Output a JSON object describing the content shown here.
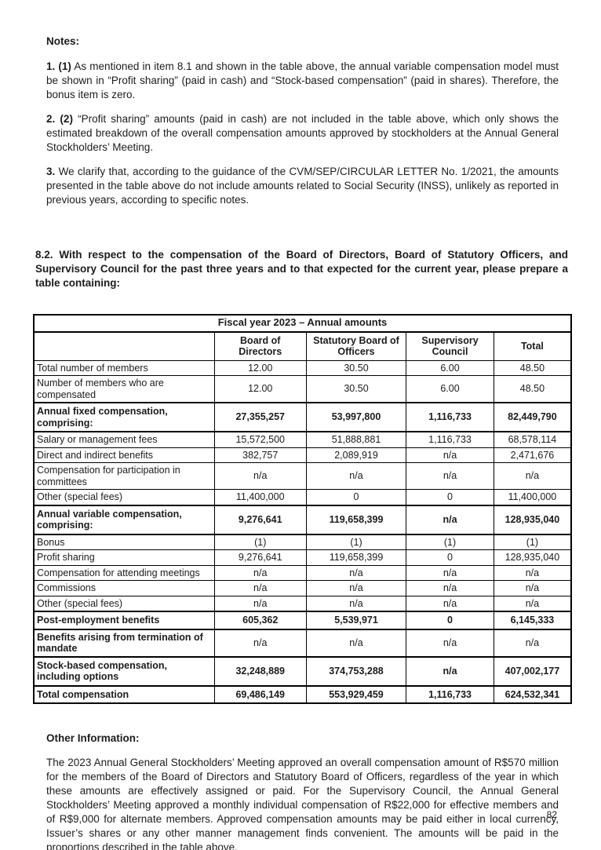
{
  "document": {
    "page_number": "82"
  },
  "notes": {
    "heading": "Notes:",
    "items": [
      {
        "prefix": "1. (1)",
        "text": "As mentioned in item 8.1 and shown in the table above, the annual variable compensation model must be shown in “Profit sharing” (paid in cash) and “Stock-based compensation” (paid in shares). Therefore, the bonus item is zero."
      },
      {
        "prefix": "2. (2)",
        "text": "“Profit sharing” amounts (paid in cash) are not included in the table above, which only shows the estimated breakdown of the overall compensation amounts approved by stockholders at the Annual General Stockholders’ Meeting."
      },
      {
        "prefix": "3.",
        "text": "We clarify that, according to the guidance of the CVM/SEP/CIRCULAR LETTER No. 1/2021, the amounts presented in the table above do not include amounts related to Social Security (INSS), unlikely as reported in previous years, according to specific notes."
      }
    ]
  },
  "section": {
    "heading": "8.2. With respect to the compensation of the Board of Directors, Board of Statutory Officers, and Supervisory Council for the past three years and to that expected for the current year, please prepare a table containing:"
  },
  "table": {
    "title": "Fiscal year 2023 – Annual amounts",
    "columns": [
      "Board of Directors",
      "Statutory Board of Officers",
      "Supervisory Council",
      "Total"
    ],
    "rows": [
      {
        "label": "Total number of members",
        "style": "normal",
        "values": [
          "12.00",
          "30.50",
          "6.00",
          "48.50"
        ]
      },
      {
        "label": "Number of members who are compensated",
        "style": "normal",
        "values": [
          "12.00",
          "30.50",
          "6.00",
          "48.50"
        ]
      },
      {
        "label": "Annual fixed compensation, comprising:",
        "style": "bold",
        "values": [
          "27,355,257",
          "53,997,800",
          "1,116,733",
          "82,449,790"
        ]
      },
      {
        "label": "Salary or management fees",
        "style": "normal",
        "values": [
          "15,572,500",
          "51,888,881",
          "1,116,733",
          "68,578,114"
        ]
      },
      {
        "label": "Direct and indirect benefits",
        "style": "normal",
        "values": [
          "382,757",
          "2,089,919",
          "n/a",
          "2,471,676"
        ]
      },
      {
        "label": "Compensation for participation in committees",
        "style": "normal",
        "values": [
          "n/a",
          "n/a",
          "n/a",
          "n/a"
        ]
      },
      {
        "label": "Other (special fees)",
        "style": "normal",
        "values": [
          "11,400,000",
          "0",
          "0",
          "11,400,000"
        ]
      },
      {
        "label": "Annual variable compensation, comprising:",
        "style": "bold",
        "values": [
          "9,276,641",
          "119,658,399",
          "n/a",
          "128,935,040"
        ]
      },
      {
        "label": "Bonus",
        "style": "normal",
        "values": [
          "(1)",
          "(1)",
          "(1)",
          "(1)"
        ]
      },
      {
        "label": "Profit sharing",
        "style": "normal",
        "values": [
          "9,276,641",
          "119,658,399",
          "0",
          "128,935,040"
        ]
      },
      {
        "label": "Compensation for attending meetings",
        "style": "normal",
        "values": [
          "n/a",
          "n/a",
          "n/a",
          "n/a"
        ]
      },
      {
        "label": "Commissions",
        "style": "normal",
        "values": [
          "n/a",
          "n/a",
          "n/a",
          "n/a"
        ]
      },
      {
        "label": "Other (special fees)",
        "style": "normal",
        "values": [
          "n/a",
          "n/a",
          "n/a",
          "n/a"
        ]
      },
      {
        "label": "Post-employment benefits",
        "style": "bold",
        "values": [
          "605,362",
          "5,539,971",
          "0",
          "6,145,333"
        ]
      },
      {
        "label": "Benefits arising from termination of mandate",
        "style": "bold-label",
        "values": [
          "n/a",
          "n/a",
          "n/a",
          "n/a"
        ]
      },
      {
        "label": "Stock-based compensation, including options",
        "style": "bold",
        "values": [
          "32,248,889",
          "374,753,288",
          "n/a",
          "407,002,177"
        ]
      },
      {
        "label": "Total compensation",
        "style": "bold",
        "values": [
          "69,486,149",
          "553,929,459",
          "1,116,733",
          "624,532,341"
        ]
      }
    ]
  },
  "other_information": {
    "heading": "Other Information:",
    "paragraph": "The 2023 Annual General Stockholders’ Meeting approved an overall compensation amount of R$570 million for the members of the Board of Directors and Statutory Board of Officers, regardless of the year in which these amounts are effectively assigned or paid. For the Supervisory Council, the Annual General Stockholders’ Meeting approved a monthly individual compensation of R$22,000 for effective members and of R$9,000 for alternate members. Approved compensation amounts may be paid either in local currency, Issuer’s shares or any other manner management finds convenient. The amounts will be paid in the proportions described in the table above."
  }
}
